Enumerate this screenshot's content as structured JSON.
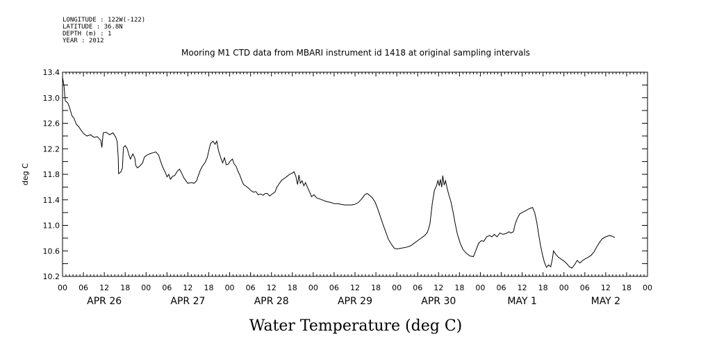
{
  "header": {
    "meta_lines": [
      "LONGITUDE : 122W(-122)",
      "LATITUDE : 36.8N",
      "DEPTH (m) : 1",
      "YEAR : 2012"
    ]
  },
  "chart_data": {
    "type": "line",
    "title": "Mooring M1 CTD data from MBARI instrument id 1418 at original sampling intervals",
    "xlabel": "Water Temperature (deg C)",
    "ylabel": "deg C",
    "ylim": [
      10.2,
      13.4
    ],
    "yticks": [
      "10.2",
      "10.6",
      "11.0",
      "11.4",
      "11.8",
      "12.2",
      "12.6",
      "13.0",
      "13.4"
    ],
    "xlim": [
      0,
      168
    ],
    "x_unit": "hours since 2012-04-26 00:00",
    "xtick_labels": [
      "00",
      "06",
      "12",
      "18",
      "00",
      "06",
      "12",
      "18",
      "00",
      "06",
      "12",
      "18",
      "00",
      "06",
      "12",
      "18",
      "00",
      "06",
      "12",
      "18",
      "00",
      "06",
      "12",
      "18",
      "00",
      "06",
      "12",
      "18",
      "00"
    ],
    "date_labels": [
      "APR 26",
      "APR 27",
      "APR 28",
      "APR 29",
      "APR 30",
      "MAY  1",
      "MAY  2"
    ],
    "grid": false,
    "series": [
      {
        "values": [
          [
            0,
            13.32
          ],
          [
            0.4,
            13.2
          ],
          [
            0.8,
            12.95
          ],
          [
            1.5,
            12.92
          ],
          [
            2.0,
            12.85
          ],
          [
            2.7,
            12.72
          ],
          [
            3.3,
            12.68
          ],
          [
            4.0,
            12.58
          ],
          [
            4.6,
            12.55
          ],
          [
            5.2,
            12.5
          ],
          [
            6.0,
            12.44
          ],
          [
            7.0,
            12.4
          ],
          [
            8.0,
            12.42
          ],
          [
            9.0,
            12.38
          ],
          [
            10.0,
            12.39
          ],
          [
            11.0,
            12.33
          ],
          [
            11.3,
            12.22
          ],
          [
            11.7,
            12.45
          ],
          [
            12.5,
            12.46
          ],
          [
            13.5,
            12.42
          ],
          [
            14.5,
            12.45
          ],
          [
            15.3,
            12.38
          ],
          [
            15.7,
            12.31
          ],
          [
            16.0,
            12.06
          ],
          [
            16.1,
            11.81
          ],
          [
            16.8,
            11.84
          ],
          [
            17.2,
            11.9
          ],
          [
            17.5,
            12.22
          ],
          [
            18.0,
            12.25
          ],
          [
            18.6,
            12.2
          ],
          [
            19.1,
            12.1
          ],
          [
            19.5,
            12.04
          ],
          [
            20.2,
            12.12
          ],
          [
            20.8,
            12.05
          ],
          [
            21.0,
            11.94
          ],
          [
            21.5,
            11.9
          ],
          [
            22.2,
            11.93
          ],
          [
            23.0,
            11.98
          ],
          [
            23.5,
            12.07
          ],
          [
            24.2,
            12.1
          ],
          [
            25.0,
            12.12
          ],
          [
            26.0,
            12.14
          ],
          [
            26.8,
            12.15
          ],
          [
            27.6,
            12.1
          ],
          [
            28.2,
            12.0
          ],
          [
            28.8,
            11.91
          ],
          [
            29.5,
            11.83
          ],
          [
            30.0,
            11.76
          ],
          [
            30.5,
            11.8
          ],
          [
            31.0,
            11.72
          ],
          [
            31.6,
            11.77
          ],
          [
            32.2,
            11.78
          ],
          [
            33.0,
            11.85
          ],
          [
            33.6,
            11.88
          ],
          [
            34.2,
            11.82
          ],
          [
            34.8,
            11.75
          ],
          [
            35.4,
            11.7
          ],
          [
            36.0,
            11.66
          ],
          [
            37.0,
            11.67
          ],
          [
            37.8,
            11.66
          ],
          [
            38.5,
            11.7
          ],
          [
            39.0,
            11.78
          ],
          [
            39.6,
            11.87
          ],
          [
            40.2,
            11.93
          ],
          [
            41.0,
            11.99
          ],
          [
            41.6,
            12.07
          ],
          [
            42.0,
            12.17
          ],
          [
            42.5,
            12.28
          ],
          [
            43.2,
            12.32
          ],
          [
            43.8,
            12.27
          ],
          [
            44.3,
            12.32
          ],
          [
            44.8,
            12.17
          ],
          [
            45.5,
            12.05
          ],
          [
            46.0,
            11.98
          ],
          [
            46.5,
            12.06
          ],
          [
            47.0,
            11.95
          ],
          [
            47.6,
            11.96
          ],
          [
            48.2,
            12.01
          ],
          [
            48.8,
            12.04
          ],
          [
            49.2,
            11.97
          ],
          [
            49.8,
            11.93
          ],
          [
            50.3,
            11.86
          ],
          [
            50.9,
            11.79
          ],
          [
            51.5,
            11.7
          ],
          [
            52.0,
            11.64
          ],
          [
            52.8,
            11.61
          ],
          [
            53.5,
            11.58
          ],
          [
            54.0,
            11.55
          ],
          [
            54.8,
            11.52
          ],
          [
            55.5,
            11.53
          ],
          [
            56.2,
            11.48
          ],
          [
            57.0,
            11.49
          ],
          [
            57.6,
            11.47
          ],
          [
            58.2,
            11.5
          ],
          [
            58.8,
            11.5
          ],
          [
            59.5,
            11.46
          ],
          [
            60.2,
            11.49
          ],
          [
            61.0,
            11.52
          ],
          [
            61.6,
            11.6
          ],
          [
            62.3,
            11.66
          ],
          [
            63.0,
            11.71
          ],
          [
            63.8,
            11.74
          ],
          [
            64.5,
            11.77
          ],
          [
            65.2,
            11.8
          ],
          [
            66.0,
            11.82
          ],
          [
            66.5,
            11.84
          ],
          [
            67.0,
            11.77
          ],
          [
            67.5,
            11.64
          ],
          [
            67.9,
            11.79
          ],
          [
            68.3,
            11.66
          ],
          [
            68.8,
            11.7
          ],
          [
            69.3,
            11.62
          ],
          [
            69.8,
            11.67
          ],
          [
            70.4,
            11.59
          ],
          [
            71.0,
            11.52
          ],
          [
            71.5,
            11.45
          ],
          [
            72.2,
            11.48
          ],
          [
            73.0,
            11.43
          ],
          [
            74.0,
            11.41
          ],
          [
            75.0,
            11.39
          ],
          [
            76.0,
            11.37
          ],
          [
            77.0,
            11.36
          ],
          [
            78.0,
            11.34
          ],
          [
            79.0,
            11.34
          ],
          [
            80.0,
            11.33
          ],
          [
            81.0,
            11.32
          ],
          [
            82.0,
            11.32
          ],
          [
            83.0,
            11.32
          ],
          [
            84.0,
            11.33
          ],
          [
            85.0,
            11.36
          ],
          [
            86.0,
            11.42
          ],
          [
            86.8,
            11.48
          ],
          [
            87.5,
            11.5
          ],
          [
            88.2,
            11.47
          ],
          [
            89.0,
            11.43
          ],
          [
            89.8,
            11.36
          ],
          [
            90.5,
            11.26
          ],
          [
            91.2,
            11.15
          ],
          [
            92.0,
            11.02
          ],
          [
            92.8,
            10.9
          ],
          [
            93.6,
            10.78
          ],
          [
            94.5,
            10.7
          ],
          [
            95.3,
            10.64
          ],
          [
            96.0,
            10.63
          ],
          [
            97.0,
            10.64
          ],
          [
            98.0,
            10.65
          ],
          [
            99.0,
            10.66
          ],
          [
            100.0,
            10.68
          ],
          [
            101.0,
            10.72
          ],
          [
            102.0,
            10.76
          ],
          [
            103.0,
            10.8
          ],
          [
            104.0,
            10.84
          ],
          [
            104.8,
            10.89
          ],
          [
            105.5,
            11.02
          ],
          [
            106.2,
            11.35
          ],
          [
            106.8,
            11.55
          ],
          [
            107.4,
            11.62
          ],
          [
            107.8,
            11.7
          ],
          [
            108.2,
            11.62
          ],
          [
            108.5,
            11.72
          ],
          [
            108.9,
            11.6
          ],
          [
            109.2,
            11.78
          ],
          [
            109.6,
            11.63
          ],
          [
            110.0,
            11.7
          ],
          [
            110.5,
            11.57
          ],
          [
            111.0,
            11.47
          ],
          [
            111.6,
            11.36
          ],
          [
            112.2,
            11.2
          ],
          [
            112.8,
            11.02
          ],
          [
            113.4,
            10.86
          ],
          [
            114.2,
            10.72
          ],
          [
            115.0,
            10.62
          ],
          [
            116.0,
            10.56
          ],
          [
            117.0,
            10.52
          ],
          [
            118.0,
            10.51
          ],
          [
            118.8,
            10.62
          ],
          [
            119.5,
            10.72
          ],
          [
            120.3,
            10.76
          ],
          [
            121.0,
            10.75
          ],
          [
            121.8,
            10.82
          ],
          [
            122.6,
            10.84
          ],
          [
            123.3,
            10.82
          ],
          [
            124.0,
            10.86
          ],
          [
            124.8,
            10.82
          ],
          [
            125.6,
            10.88
          ],
          [
            126.5,
            10.86
          ],
          [
            127.3,
            10.87
          ],
          [
            128.2,
            10.9
          ],
          [
            128.8,
            10.88
          ],
          [
            129.5,
            10.9
          ],
          [
            130.0,
            11.02
          ],
          [
            130.6,
            11.11
          ],
          [
            131.3,
            11.18
          ],
          [
            132.0,
            11.2
          ],
          [
            133.0,
            11.23
          ],
          [
            134.0,
            11.26
          ],
          [
            135.0,
            11.28
          ],
          [
            135.6,
            11.2
          ],
          [
            136.2,
            11.05
          ],
          [
            136.8,
            10.84
          ],
          [
            137.3,
            10.68
          ],
          [
            137.8,
            10.55
          ],
          [
            138.4,
            10.42
          ],
          [
            139.0,
            10.34
          ],
          [
            139.6,
            10.38
          ],
          [
            140.2,
            10.35
          ],
          [
            140.7,
            10.48
          ],
          [
            141.0,
            10.6
          ],
          [
            141.6,
            10.55
          ],
          [
            142.4,
            10.5
          ],
          [
            143.2,
            10.47
          ],
          [
            144.0,
            10.44
          ],
          [
            144.8,
            10.4
          ],
          [
            145.6,
            10.35
          ],
          [
            146.3,
            10.33
          ],
          [
            147.0,
            10.38
          ],
          [
            147.8,
            10.45
          ],
          [
            148.6,
            10.41
          ],
          [
            149.4,
            10.45
          ],
          [
            150.2,
            10.48
          ],
          [
            151.0,
            10.5
          ],
          [
            151.8,
            10.53
          ],
          [
            152.6,
            10.58
          ],
          [
            153.4,
            10.66
          ],
          [
            154.2,
            10.73
          ],
          [
            155.0,
            10.79
          ],
          [
            156.0,
            10.82
          ],
          [
            157.0,
            10.84
          ],
          [
            157.8,
            10.83
          ],
          [
            158.6,
            10.81
          ]
        ]
      }
    ]
  }
}
